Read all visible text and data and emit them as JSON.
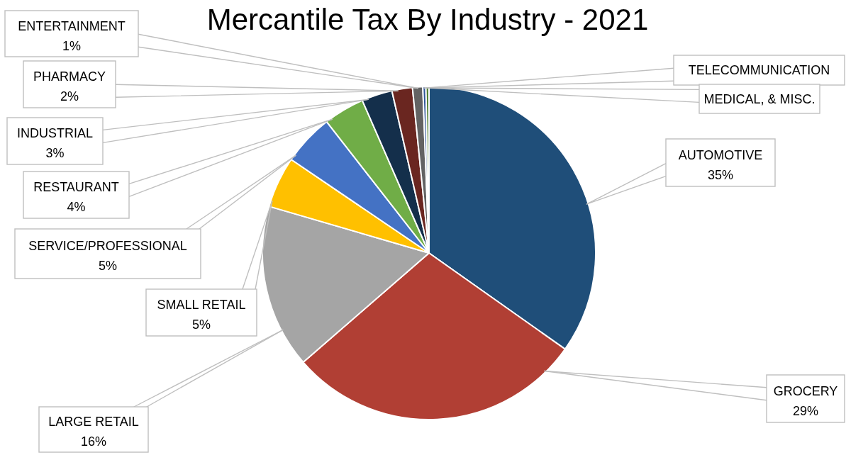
{
  "chart_data": {
    "type": "pie",
    "title": "Mercantile Tax By Industry - 2021",
    "categories": [
      "AUTOMOTIVE",
      "GROCERY",
      "LARGE RETAIL",
      "SMALL RETAIL",
      "SERVICE/PROFESSIONAL",
      "RESTAURANT",
      "INDUSTRIAL",
      "PHARMACY",
      "ENTERTAINMENT",
      "TELECOMMUNICATION",
      "MEDICAL, & MISC."
    ],
    "values": [
      35,
      29,
      16,
      5,
      5,
      4,
      3,
      2,
      1,
      0.3,
      0.3
    ],
    "colors": [
      "#1f4e79",
      "#b13f34",
      "#a5a5a5",
      "#ffc000",
      "#4472c4",
      "#70ad47",
      "#142f4b",
      "#6a2620",
      "#636363",
      "#2f5597",
      "#548235"
    ],
    "value_labels": [
      "35%",
      "29%",
      "16%",
      "5%",
      "5%",
      "4%",
      "3%",
      "2%",
      "1%",
      null,
      null
    ]
  }
}
